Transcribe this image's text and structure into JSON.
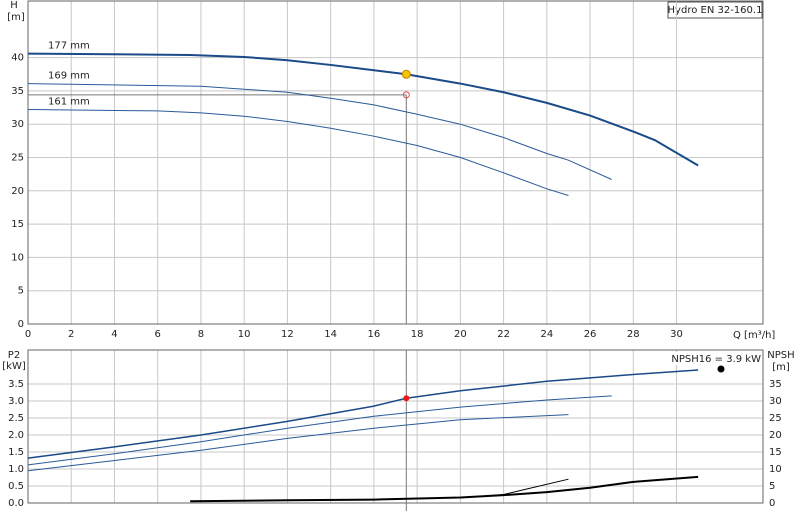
{
  "chart_data": [
    {
      "type": "line",
      "title": "Hydro EN 32-160.1",
      "y_label": "H",
      "y_unit": "[m]",
      "x_label": "Q [m³/h]",
      "xlim": [
        0,
        34
      ],
      "xticks": [
        0,
        2,
        4,
        6,
        8,
        10,
        12,
        14,
        16,
        18,
        20,
        22,
        24,
        26,
        28,
        30
      ],
      "ylim": [
        0,
        48.5
      ],
      "yticks": [
        0,
        5,
        10,
        15,
        20,
        25,
        30,
        35,
        40
      ],
      "grid": true,
      "series": [
        {
          "name": "177 mm",
          "color": "#1a4a88",
          "width": 2,
          "x": [
            0,
            7.5,
            10,
            12,
            14,
            16,
            17.5,
            20,
            22,
            24,
            26,
            28,
            29,
            31
          ],
          "values": [
            40.6,
            40.4,
            40.1,
            39.6,
            38.9,
            38.1,
            37.5,
            36.1,
            34.8,
            33.2,
            31.3,
            28.9,
            27.6,
            23.8
          ]
        },
        {
          "name": "169 mm",
          "color": "#2a5a98",
          "width": 1,
          "x": [
            0,
            8,
            12,
            14,
            16,
            18,
            20,
            22,
            24,
            25,
            27
          ],
          "values": [
            36.1,
            35.7,
            34.8,
            33.9,
            32.9,
            31.5,
            30,
            28,
            25.6,
            24.6,
            21.7
          ]
        },
        {
          "name": "161 mm",
          "color": "#2a5a98",
          "width": 1,
          "x": [
            0,
            6,
            8,
            10,
            12,
            14,
            16,
            18,
            20,
            22,
            24,
            25
          ],
          "values": [
            32.2,
            32,
            31.7,
            31.2,
            30.4,
            29.4,
            28.2,
            26.8,
            25,
            22.7,
            20.3,
            19.3
          ]
        }
      ],
      "duty_point": {
        "x": 17.5,
        "y": 37.5,
        "color": "#f5c400"
      },
      "reference_point": {
        "x": 17.5,
        "y": 34.4,
        "color": "#e05050"
      }
    },
    {
      "type": "line",
      "y_label": "P2",
      "y_unit": "[kW]",
      "y2_label": "NPSH",
      "y2_unit": "[m]",
      "annotation": "NPSH16 = 3.9 kW",
      "xlim": [
        0,
        34
      ],
      "ylim": [
        0,
        4.5
      ],
      "yticks": [
        {
          "value": 0,
          "label": "0.0"
        },
        0.5,
        {
          "value": 1,
          "label": "1.0"
        },
        1.5,
        {
          "value": 2,
          "label": "2.0"
        },
        2.5,
        {
          "value": 3,
          "label": "3.0"
        },
        3.5
      ],
      "y2lim": [
        0,
        45
      ],
      "y2ticks": [
        0,
        5,
        10,
        15,
        20,
        25,
        30,
        35
      ],
      "grid": true,
      "series": [
        {
          "color": "#1a4a88",
          "width": 1.5,
          "x": [
            0,
            4,
            8,
            12,
            16,
            17.5,
            20,
            24,
            28,
            31
          ],
          "values": [
            1.32,
            1.65,
            2,
            2.4,
            2.85,
            3.08,
            3.3,
            3.58,
            3.78,
            3.91
          ]
        },
        {
          "color": "#2a5a98",
          "width": 1,
          "x": [
            0,
            4,
            8,
            12,
            16,
            20,
            24,
            27
          ],
          "values": [
            1.12,
            1.45,
            1.8,
            2.2,
            2.55,
            2.82,
            3.03,
            3.15
          ]
        },
        {
          "color": "#2a5a98",
          "width": 1,
          "x": [
            0,
            4,
            8,
            12,
            16,
            20,
            25
          ],
          "values": [
            0.95,
            1.25,
            1.55,
            1.9,
            2.2,
            2.45,
            2.6
          ]
        },
        {
          "color": "#000000",
          "width": 2,
          "axis": "y2",
          "x": [
            7.5,
            12,
            16,
            20,
            22,
            24,
            26,
            28,
            31
          ],
          "values": [
            0.5,
            0.8,
            1,
            1.6,
            2.3,
            3.2,
            4.5,
            6.2,
            7.7
          ]
        },
        {
          "color": "#000000",
          "width": 1,
          "axis": "y2",
          "x": [
            20,
            22,
            23,
            25
          ],
          "values": [
            1.5,
            2.5,
            4,
            7
          ]
        }
      ],
      "duty_point": {
        "x": 17.5,
        "y": 3.08,
        "color": "#e81818"
      }
    }
  ]
}
